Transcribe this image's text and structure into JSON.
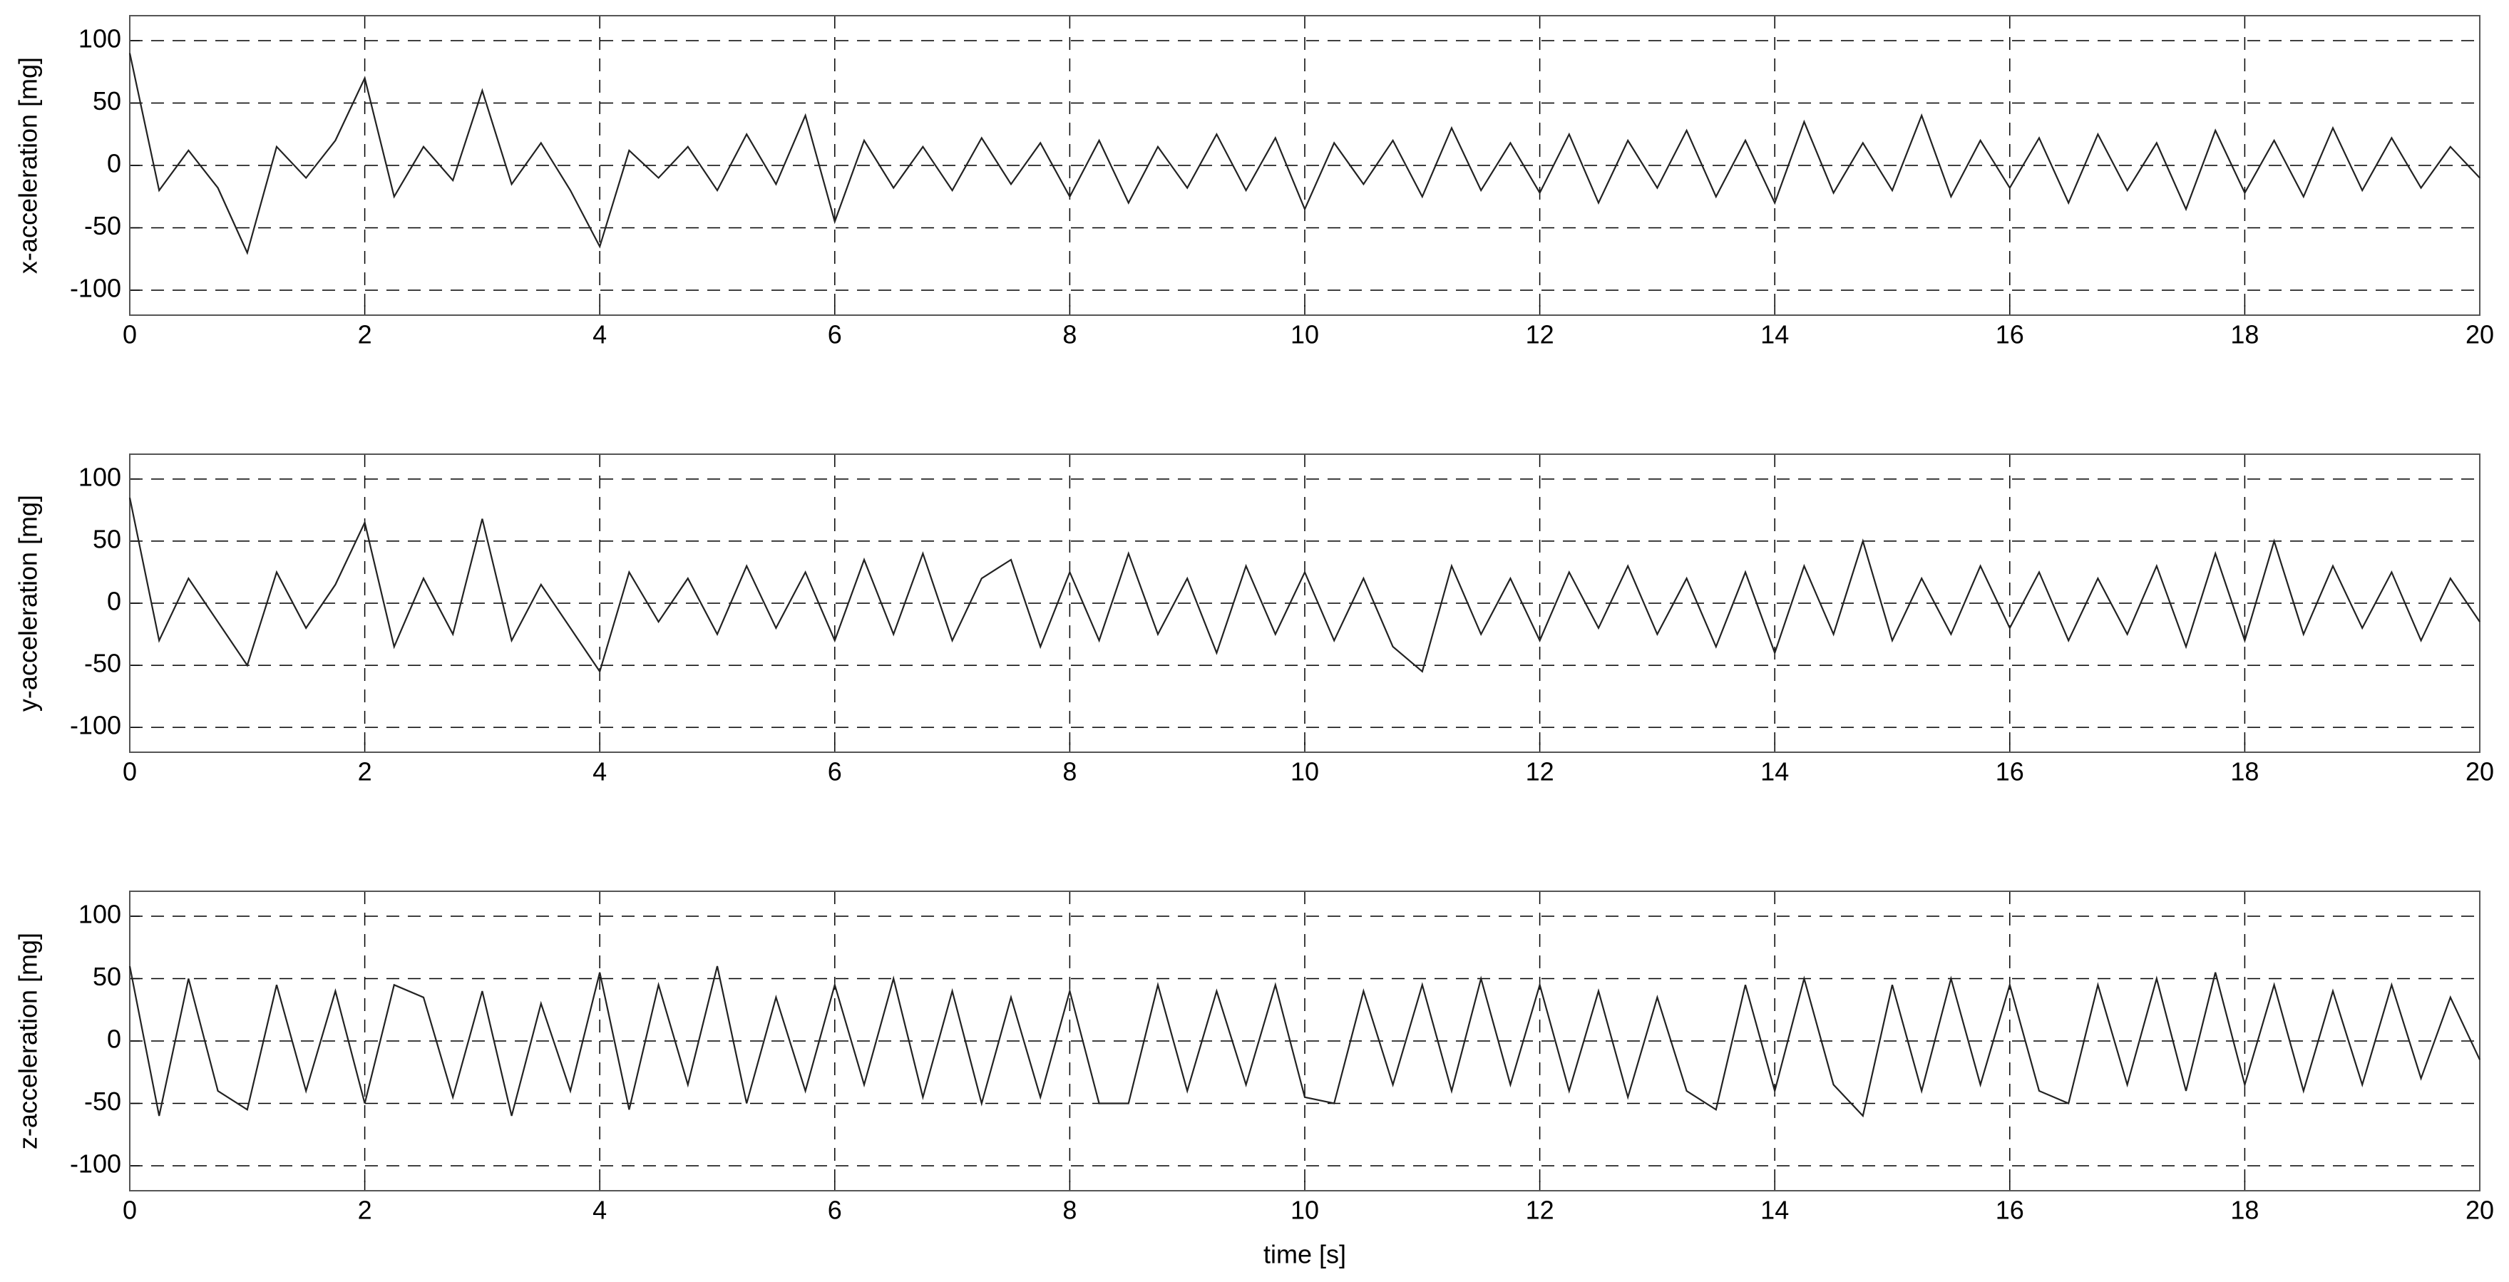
{
  "chart_data": [
    {
      "type": "line",
      "ylabel": "x-acceleration [mg]",
      "color": "#222222",
      "grid": true,
      "xlim": [
        0,
        20
      ],
      "xticks": [
        0,
        2,
        4,
        6,
        8,
        10,
        12,
        14,
        16,
        18,
        20
      ],
      "ylim": [
        -120,
        120
      ],
      "yticks": [
        -100,
        -50,
        0,
        50,
        100
      ],
      "x": [
        0,
        0.25,
        0.5,
        0.75,
        1,
        1.25,
        1.5,
        1.75,
        2,
        2.25,
        2.5,
        2.75,
        3,
        3.25,
        3.5,
        3.75,
        4,
        4.25,
        4.5,
        4.75,
        5,
        5.25,
        5.5,
        5.75,
        6,
        6.25,
        6.5,
        6.75,
        7,
        7.25,
        7.5,
        7.75,
        8,
        8.25,
        8.5,
        8.75,
        9,
        9.25,
        9.5,
        9.75,
        10,
        10.25,
        10.5,
        10.75,
        11,
        11.25,
        11.5,
        11.75,
        12,
        12.25,
        12.5,
        12.75,
        13,
        13.25,
        13.5,
        13.75,
        14,
        14.25,
        14.5,
        14.75,
        15,
        15.25,
        15.5,
        15.75,
        16,
        16.25,
        16.5,
        16.75,
        17,
        17.25,
        17.5,
        17.75,
        18,
        18.25,
        18.5,
        18.75,
        19,
        19.25,
        19.5,
        19.75,
        20
      ],
      "values": [
        90,
        -20,
        12,
        -18,
        -70,
        15,
        -10,
        20,
        70,
        -25,
        15,
        -12,
        60,
        -15,
        18,
        -20,
        -65,
        12,
        -10,
        15,
        -20,
        25,
        -15,
        40,
        -45,
        20,
        -18,
        15,
        -20,
        22,
        -15,
        18,
        -25,
        20,
        -30,
        15,
        -18,
        25,
        -20,
        22,
        -35,
        18,
        -15,
        20,
        -25,
        30,
        -20,
        18,
        -22,
        25,
        -30,
        20,
        -18,
        28,
        -25,
        20,
        -30,
        35,
        -22,
        18,
        -20,
        40,
        -25,
        20,
        -18,
        22,
        -30,
        25,
        -20,
        18,
        -35,
        28,
        -22,
        20,
        -25,
        30,
        -20,
        22,
        -18,
        15,
        -10
      ]
    },
    {
      "type": "line",
      "ylabel": "y-acceleration [mg]",
      "color": "#222222",
      "grid": true,
      "xlim": [
        0,
        20
      ],
      "xticks": [
        0,
        2,
        4,
        6,
        8,
        10,
        12,
        14,
        16,
        18,
        20
      ],
      "ylim": [
        -120,
        120
      ],
      "yticks": [
        -100,
        -50,
        0,
        50,
        100
      ],
      "x": [
        0,
        0.25,
        0.5,
        0.75,
        1,
        1.25,
        1.5,
        1.75,
        2,
        2.25,
        2.5,
        2.75,
        3,
        3.25,
        3.5,
        3.75,
        4,
        4.25,
        4.5,
        4.75,
        5,
        5.25,
        5.5,
        5.75,
        6,
        6.25,
        6.5,
        6.75,
        7,
        7.25,
        7.5,
        7.75,
        8,
        8.25,
        8.5,
        8.75,
        9,
        9.25,
        9.5,
        9.75,
        10,
        10.25,
        10.5,
        10.75,
        11,
        11.25,
        11.5,
        11.75,
        12,
        12.25,
        12.5,
        12.75,
        13,
        13.25,
        13.5,
        13.75,
        14,
        14.25,
        14.5,
        14.75,
        15,
        15.25,
        15.5,
        15.75,
        16,
        16.25,
        16.5,
        16.75,
        17,
        17.25,
        17.5,
        17.75,
        18,
        18.25,
        18.5,
        18.75,
        19,
        19.25,
        19.5,
        19.75,
        20
      ],
      "values": [
        85,
        -30,
        20,
        -15,
        -50,
        25,
        -20,
        15,
        65,
        -35,
        20,
        -25,
        68,
        -30,
        15,
        -20,
        -55,
        25,
        -15,
        20,
        -25,
        30,
        -20,
        25,
        -30,
        35,
        -25,
        40,
        -30,
        20,
        35,
        -35,
        25,
        -30,
        40,
        -25,
        20,
        -40,
        30,
        -25,
        25,
        -30,
        20,
        -35,
        -55,
        30,
        -25,
        20,
        -30,
        25,
        -20,
        30,
        -25,
        20,
        -35,
        25,
        -40,
        30,
        -25,
        50,
        -30,
        20,
        -25,
        30,
        -20,
        25,
        -30,
        20,
        -25,
        30,
        -35,
        40,
        -30,
        50,
        -25,
        30,
        -20,
        25,
        -30,
        20,
        -15
      ]
    },
    {
      "type": "line",
      "ylabel": "z-acceleration [mg]",
      "xlabel": "time [s]",
      "color": "#222222",
      "grid": true,
      "xlim": [
        0,
        20
      ],
      "xticks": [
        0,
        2,
        4,
        6,
        8,
        10,
        12,
        14,
        16,
        18,
        20
      ],
      "ylim": [
        -120,
        120
      ],
      "yticks": [
        -100,
        -50,
        0,
        50,
        100
      ],
      "x": [
        0,
        0.25,
        0.5,
        0.75,
        1,
        1.25,
        1.5,
        1.75,
        2,
        2.25,
        2.5,
        2.75,
        3,
        3.25,
        3.5,
        3.75,
        4,
        4.25,
        4.5,
        4.75,
        5,
        5.25,
        5.5,
        5.75,
        6,
        6.25,
        6.5,
        6.75,
        7,
        7.25,
        7.5,
        7.75,
        8,
        8.25,
        8.5,
        8.75,
        9,
        9.25,
        9.5,
        9.75,
        10,
        10.25,
        10.5,
        10.75,
        11,
        11.25,
        11.5,
        11.75,
        12,
        12.25,
        12.5,
        12.75,
        13,
        13.25,
        13.5,
        13.75,
        14,
        14.25,
        14.5,
        14.75,
        15,
        15.25,
        15.5,
        15.75,
        16,
        16.25,
        16.5,
        16.75,
        17,
        17.25,
        17.5,
        17.75,
        18,
        18.25,
        18.5,
        18.75,
        19,
        19.25,
        19.5,
        19.75,
        20
      ],
      "values": [
        60,
        -60,
        50,
        -40,
        -55,
        45,
        -40,
        40,
        -50,
        45,
        35,
        -45,
        40,
        -60,
        30,
        -40,
        55,
        -55,
        45,
        -35,
        60,
        -50,
        35,
        -40,
        45,
        -35,
        50,
        -45,
        40,
        -50,
        35,
        -45,
        40,
        -50,
        -50,
        45,
        -40,
        40,
        -35,
        45,
        -45,
        -50,
        40,
        -35,
        45,
        -40,
        50,
        -35,
        45,
        -40,
        40,
        -45,
        35,
        -40,
        -55,
        45,
        -40,
        50,
        -35,
        -60,
        45,
        -40,
        50,
        -35,
        45,
        -40,
        -50,
        45,
        -35,
        50,
        -40,
        55,
        -35,
        45,
        -40,
        40,
        -35,
        45,
        -30,
        35,
        -15
      ]
    }
  ]
}
